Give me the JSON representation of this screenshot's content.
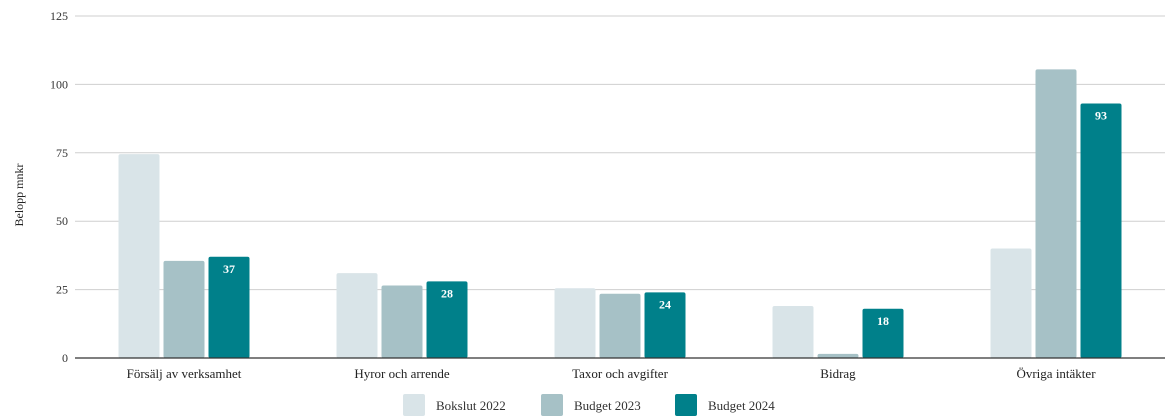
{
  "chart_data": {
    "type": "bar",
    "title": "",
    "xlabel": "",
    "ylabel": "Belopp mnkr",
    "ylim": [
      0,
      125
    ],
    "yticks": [
      0,
      25,
      50,
      75,
      100,
      125
    ],
    "grid": true,
    "legend_position": "bottom",
    "categories": [
      "Försälj av verksamhet",
      "Hyror och arrende",
      "Taxor och avgifter",
      "Bidrag",
      "Övriga intäkter"
    ],
    "series": [
      {
        "name": "Bokslut 2022",
        "color": "#d9e4e8",
        "values": [
          74.5,
          31,
          25.5,
          19,
          40
        ],
        "show_labels": false
      },
      {
        "name": "Budget 2023",
        "color": "#a6c1c6",
        "values": [
          35.5,
          26.5,
          23.5,
          1.5,
          105.5
        ],
        "show_labels": false
      },
      {
        "name": "Budget 2024",
        "color": "#00808a",
        "values": [
          37,
          28,
          24,
          18,
          93
        ],
        "data_labels": [
          "37",
          "28",
          "24",
          "18",
          "93"
        ],
        "show_labels": true
      }
    ]
  }
}
